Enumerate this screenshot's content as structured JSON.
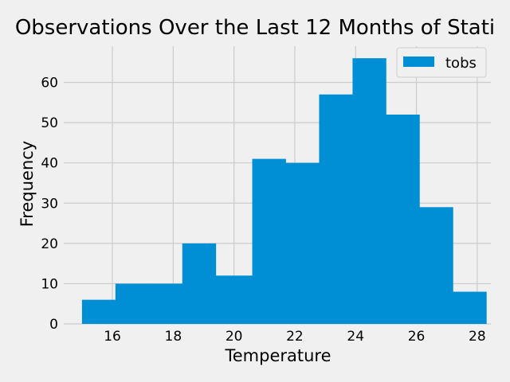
{
  "chart_data": {
    "type": "bar",
    "title": "Observations Over the Last 12 Months of Stati",
    "xlabel": "Temperature",
    "ylabel": "Frequency",
    "xlim": [
      14.4,
      28.45
    ],
    "ylim": [
      0,
      69
    ],
    "xticks": [
      16,
      18,
      20,
      22,
      24,
      26,
      28
    ],
    "yticks": [
      0,
      10,
      20,
      30,
      40,
      50,
      60
    ],
    "grid": true,
    "legend": {
      "position": "top-right",
      "entries": [
        "tobs"
      ]
    },
    "series": [
      {
        "name": "tobs",
        "color": "#008fd5",
        "bins": [
          {
            "x0": 15.0,
            "x1": 16.1,
            "count": 6
          },
          {
            "x0": 16.1,
            "x1": 17.2,
            "count": 10
          },
          {
            "x0": 17.2,
            "x1": 18.3,
            "count": 10
          },
          {
            "x0": 18.3,
            "x1": 19.4,
            "count": 20
          },
          {
            "x0": 19.4,
            "x1": 20.6,
            "count": 12
          },
          {
            "x0": 20.6,
            "x1": 21.7,
            "count": 41
          },
          {
            "x0": 21.7,
            "x1": 22.8,
            "count": 40
          },
          {
            "x0": 22.8,
            "x1": 23.9,
            "count": 57
          },
          {
            "x0": 23.9,
            "x1": 25.0,
            "count": 66
          },
          {
            "x0": 25.0,
            "x1": 26.1,
            "count": 52
          },
          {
            "x0": 26.1,
            "x1": 27.2,
            "count": 29
          },
          {
            "x0": 27.2,
            "x1": 28.3,
            "count": 8
          }
        ]
      }
    ]
  }
}
